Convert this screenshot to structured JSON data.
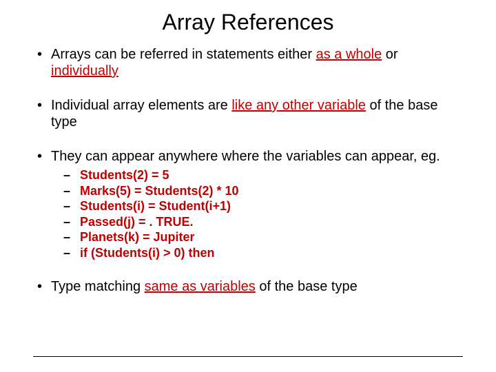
{
  "colors": {
    "background": "#ffffff",
    "text": "#000000",
    "highlight": "#c00000",
    "rule": "#000000"
  },
  "typography": {
    "title_fontsize": 32,
    "body_fontsize": 20,
    "sub_fontsize": 18,
    "font_family": "Arial"
  },
  "title": "Array References",
  "bullets": {
    "b1": {
      "p1": "Arrays can be referred in statements either ",
      "h1": "as a whole",
      "p2": " or ",
      "h2": "individually"
    },
    "b2": {
      "p1": "Individual array elements are ",
      "h1": "like any other variable",
      "p2": " of the base type"
    },
    "b3": {
      "p1": "They can appear anywhere where the variables can appear, eg.",
      "items": {
        "s1": "Students(2) = 5",
        "s2": "Marks(5) = Students(2) * 10",
        "s3": "Students(i) = Student(i+1)",
        "s4": "Passed(j) = . TRUE.",
        "s5": "Planets(k) = Jupiter",
        "s6": "if (Students(i) > 0) then"
      }
    },
    "b4": {
      "p1": "Type matching ",
      "h1": "same as variables",
      "p2": " of the base type"
    }
  }
}
